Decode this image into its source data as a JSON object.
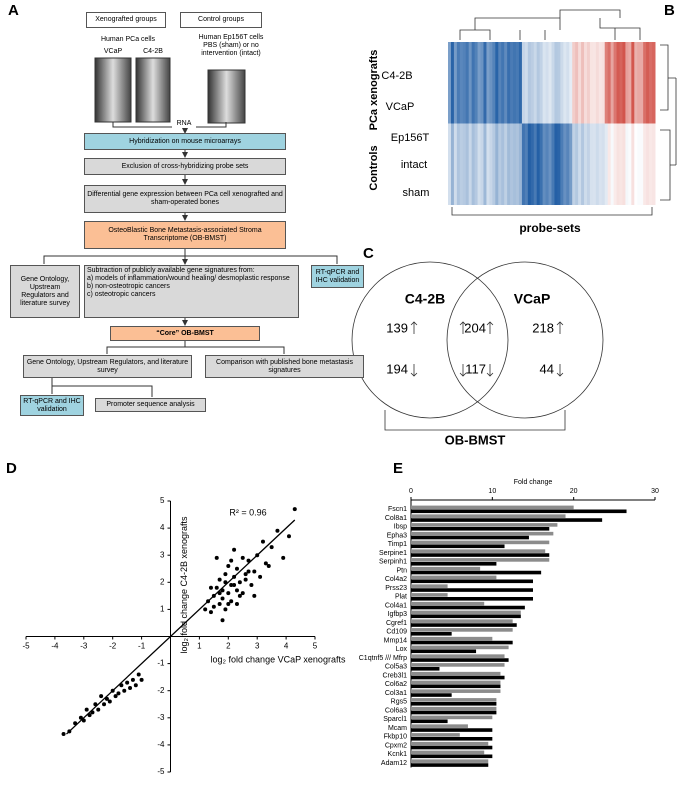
{
  "panel_labels": [
    "A",
    "B",
    "C",
    "D",
    "E"
  ],
  "flowchart": {
    "xeno_header": "Xenografted groups",
    "control_header": "Control groups",
    "xeno_cells": "Human PCa cells",
    "control_cells": "Human Ep156T cells PBS (sham) or no intervention (intact)",
    "xray_labels": [
      "VCaP",
      "C4-2B"
    ],
    "rna": "RNA",
    "hybridization": "Hybridization on mouse microarrays",
    "exclusion": "Exclusion of cross-hybridizing probe sets",
    "differential": "Differential gene expression between PCa cell xenografted and sham-operated bones",
    "obbmst": "OsteoBlastic Bone Metastasis-associated Stroma Transcriptome (OB-BMST)",
    "go_left": "Gene Ontology, Upstream Regulators and literature survey",
    "subtraction": {
      "title": "Subtraction of publicly available gene signatures from:",
      "items": [
        "a)  models of inflammation/wound healing/ desmoplastic response",
        "b)  non-osteotropic cancers",
        "c)  osteotropic cancers"
      ]
    },
    "rtqpcr_right": "RT-qPCR and IHC validation",
    "core": "“Core” OB-BMST",
    "go_bottom": "Gene Ontology, Upstream Regulators, and literature survey",
    "comparison": "Comparison with published bone metastasis signatures",
    "rtqpcr_bottom": "RT-qPCR and IHC validation",
    "promoter": "Promoter sequence analysis"
  },
  "heatmap": {
    "row_labels": [
      "C4-2B",
      "VCaP",
      "Ep156T",
      "intact",
      "sham"
    ],
    "groups": [
      "PCa xenografts",
      "Controls"
    ],
    "x_label": "probe-sets"
  },
  "venn": {
    "sets": [
      "C4-2B",
      "VCaP"
    ],
    "counts": [
      "139",
      "194",
      "204",
      "117",
      "218",
      "44"
    ],
    "label": "OB-BMST"
  },
  "chart_data": [
    {
      "type": "scatter",
      "annotation": "R² = 0.96",
      "x_label": "log₂ fold change VCaP xenografts",
      "y_label": "log₂ fold change C4-2B xenografts",
      "xlim": [
        -5,
        5
      ],
      "ylim": [
        -5,
        5
      ],
      "xticks": [
        -5,
        -4,
        -3,
        -2,
        -1,
        1,
        2,
        3,
        4,
        5
      ],
      "yticks": [
        -5,
        -4,
        -3,
        -2,
        -1,
        1,
        2,
        3,
        4,
        5
      ],
      "color": "#000000",
      "x": [
        1.2,
        1.3,
        1.4,
        1.5,
        1.5,
        1.6,
        1.7,
        1.7,
        1.8,
        1.8,
        1.9,
        1.9,
        2.0,
        2.0,
        2.1,
        2.1,
        2.2,
        2.2,
        2.3,
        2.3,
        2.4,
        2.5,
        2.5,
        2.6,
        2.7,
        2.8,
        2.9,
        3.0,
        3.1,
        3.2,
        3.3,
        3.5,
        3.7,
        3.9,
        4.1,
        4.3,
        1.6,
        1.8,
        2.0,
        2.2,
        2.4,
        2.6,
        1.4,
        1.7,
        2.1,
        2.9,
        3.4,
        2.3,
        1.9,
        2.7,
        -1.0,
        -1.1,
        -1.2,
        -1.3,
        -1.4,
        -1.5,
        -1.6,
        -1.7,
        -1.8,
        -1.9,
        -2.0,
        -2.1,
        -2.2,
        -2.3,
        -2.4,
        -2.5,
        -2.6,
        -2.7,
        -2.8,
        -2.9,
        -3.0,
        -3.1,
        -3.3,
        -3.5,
        -3.7
      ],
      "y": [
        1.0,
        1.3,
        0.9,
        1.5,
        1.1,
        1.8,
        1.2,
        2.1,
        1.4,
        1.7,
        2.3,
        1.0,
        1.6,
        2.6,
        1.9,
        1.3,
        2.2,
        3.2,
        1.7,
        2.5,
        2.0,
        1.6,
        2.9,
        2.3,
        2.8,
        1.9,
        2.4,
        3.0,
        2.2,
        3.5,
        2.7,
        3.3,
        3.9,
        2.9,
        3.7,
        4.7,
        2.9,
        0.6,
        1.2,
        1.9,
        1.5,
        2.1,
        1.8,
        1.6,
        2.8,
        1.5,
        2.6,
        1.2,
        2.0,
        2.4,
        -1.6,
        -1.4,
        -1.8,
        -1.6,
        -1.9,
        -1.7,
        -2.0,
        -1.8,
        -2.1,
        -2.2,
        -2.0,
        -2.4,
        -2.3,
        -2.5,
        -2.2,
        -2.7,
        -2.5,
        -2.8,
        -2.9,
        -2.7,
        -3.1,
        -3.0,
        -3.2,
        -3.5,
        -3.6
      ],
      "fit": {
        "x": [
          -3.6,
          4.3
        ],
        "y": [
          -3.6,
          4.3
        ]
      }
    },
    {
      "type": "barh",
      "x_label": "Fold change",
      "xlim": [
        0,
        30
      ],
      "xticks": [
        0,
        10,
        20,
        30
      ],
      "categories": [
        "Fscn1",
        "Col8a1",
        "Ibsp",
        "Epha3",
        "Timp1",
        "Serpine1",
        "Serpinh1",
        "Ptn",
        "Col4a2",
        "Prss23",
        "Plat",
        "Col4a1",
        "Igfbp3",
        "Cgref1",
        "Cd109",
        "Mmp14",
        "Lox",
        "C1qtnf5 /// Mfrp",
        "Col5a3",
        "Creb3l1",
        "Col6a2",
        "Col3a1",
        "Rgs5",
        "Col6a3",
        "Sparcl1",
        "Mcam",
        "Fkbp10",
        "Cpxm2",
        "Kcnk1",
        "Adam12"
      ],
      "series": [
        {
          "color": "#8c8c8c",
          "values": [
            20,
            19,
            18,
            17.5,
            17,
            16.5,
            17,
            8.5,
            10.5,
            4.5,
            4.5,
            9,
            13.5,
            12.5,
            12.5,
            10,
            12,
            11.5,
            11.5,
            11,
            11,
            11,
            10.5,
            10.5,
            10,
            7,
            6,
            9.5,
            9,
            9.5
          ]
        },
        {
          "color": "#000000",
          "values": [
            26.5,
            23.5,
            17,
            14.5,
            11.5,
            17,
            10.5,
            16,
            15,
            15,
            15,
            14,
            13.5,
            13,
            5,
            12.5,
            8,
            12,
            3.5,
            11.5,
            11,
            5,
            10.5,
            10.5,
            4.5,
            10,
            10,
            10,
            10,
            9.5
          ]
        }
      ]
    }
  ]
}
